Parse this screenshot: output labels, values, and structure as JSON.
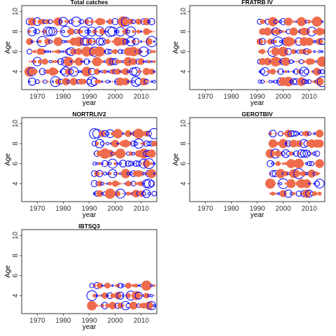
{
  "figure": {
    "page_background": "#ffffff",
    "positive_color": "#ee6c4d",
    "negative_color": "#0000ff"
  },
  "chart_data": [
    {
      "type": "scatter",
      "title": "Total catches",
      "xlabel": "year",
      "ylabel": "Age",
      "xlim": [
        1964,
        2016
      ],
      "ylim": [
        2.2,
        10.6
      ],
      "xticks": [
        1970,
        1980,
        1990,
        2000,
        2010
      ],
      "yticks": [
        4,
        6,
        8,
        10
      ],
      "years": [
        1967,
        2015
      ],
      "ages": [
        3,
        9
      ],
      "marker_style": "bubble residual plot; filled = positive, open = negative"
    },
    {
      "type": "scatter",
      "title": "FRATRB IV",
      "xlabel": "year",
      "ylabel": "Age",
      "xlim": [
        1964,
        2016
      ],
      "ylim": [
        2.2,
        10.6
      ],
      "xticks": [
        1970,
        1980,
        1990,
        2000,
        2010
      ],
      "yticks": [
        4,
        6,
        8,
        10
      ],
      "years": [
        1991,
        2015
      ],
      "ages": [
        3,
        9
      ],
      "marker_style": "bubble residual plot; filled = positive, open = negative"
    },
    {
      "type": "scatter",
      "title": "NORTRLIV2",
      "xlabel": "year",
      "ylabel": "Age",
      "xlim": [
        1964,
        2016
      ],
      "ylim": [
        2.2,
        10.6
      ],
      "xticks": [
        1970,
        1980,
        1990,
        2000,
        2010
      ],
      "yticks": [
        4,
        6,
        8,
        10
      ],
      "years": [
        1992,
        2015
      ],
      "ages": [
        3,
        9
      ],
      "marker_style": "bubble residual plot; filled = positive, open = negative"
    },
    {
      "type": "scatter",
      "title": "GEROTBIV",
      "xlabel": "year",
      "ylabel": "Age",
      "xlim": [
        1964,
        2016
      ],
      "ylim": [
        2.2,
        10.6
      ],
      "xticks": [
        1970,
        1980,
        1990,
        2000,
        2010
      ],
      "yticks": [
        4,
        6,
        8,
        10
      ],
      "years": [
        1995,
        2014
      ],
      "ages": [
        3,
        9
      ],
      "marker_style": "bubble residual plot; filled = positive, open = negative"
    },
    {
      "type": "scatter",
      "title": "IBTSQ3",
      "xlabel": "year",
      "ylabel": "Age",
      "xlim": [
        1964,
        2016
      ],
      "ylim": [
        2.2,
        10.6
      ],
      "xticks": [
        1970,
        1980,
        1990,
        2000,
        2010
      ],
      "yticks": [
        4,
        6,
        8,
        10
      ],
      "years": [
        1991,
        2015
      ],
      "ages": [
        3,
        5
      ],
      "marker_style": "bubble residual plot; filled = positive, open = negative"
    }
  ]
}
